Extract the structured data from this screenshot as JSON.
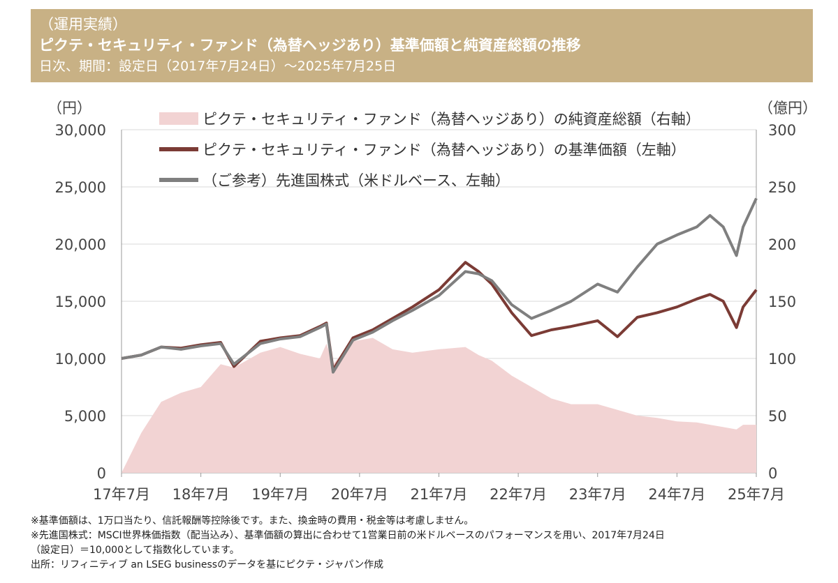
{
  "header": {
    "label": "（運用実績）",
    "title": "ピクテ・セキュリティ・ファンド（為替ヘッジあり）基準価額と純資産総額の推移",
    "subtitle": "日次、期間：設定日（2017年7月24日）～2025年7月25日"
  },
  "chart_data": {
    "type": "line",
    "left_unit": "（円）",
    "right_unit": "（億円）",
    "ylim_left": [
      0,
      30000
    ],
    "ylim_right": [
      0,
      300
    ],
    "yticks_left": [
      "0",
      "5,000",
      "10,000",
      "15,000",
      "20,000",
      "25,000",
      "30,000"
    ],
    "yticks_right": [
      "0",
      "50",
      "100",
      "150",
      "200",
      "250",
      "300"
    ],
    "xticks": [
      "17年7月",
      "18年7月",
      "19年7月",
      "20年7月",
      "21年7月",
      "22年7月",
      "23年7月",
      "24年7月",
      "25年7月"
    ],
    "grid": true,
    "legend_placement": "top-left",
    "x": [
      "2017-07",
      "2017-10",
      "2018-01",
      "2018-04",
      "2018-07",
      "2018-10",
      "2018-12",
      "2019-04",
      "2019-07",
      "2019-10",
      "2020-01",
      "2020-02",
      "2020-03",
      "2020-06",
      "2020-09",
      "2020-12",
      "2021-03",
      "2021-07",
      "2021-11",
      "2022-01",
      "2022-03",
      "2022-06",
      "2022-09",
      "2022-12",
      "2023-03",
      "2023-07",
      "2023-10",
      "2024-01",
      "2024-04",
      "2024-07",
      "2024-10",
      "2024-12",
      "2025-02",
      "2025-04",
      "2025-05",
      "2025-07"
    ],
    "series": [
      {
        "name": "ピクテ・セキュリティ・ファンド（為替ヘッジあり）の純資産総額（右軸）",
        "axis": "right",
        "kind": "area",
        "color": "#f2d3d3",
        "values": [
          0,
          35,
          62,
          70,
          75,
          95,
          92,
          105,
          110,
          104,
          100,
          113,
          95,
          115,
          118,
          108,
          105,
          108,
          110,
          103,
          98,
          85,
          75,
          65,
          60,
          60,
          55,
          50,
          48,
          45,
          44,
          42,
          40,
          38,
          42,
          42
        ]
      },
      {
        "name": "ピクテ・セキュリティ・ファンド（為替ヘッジあり）の基準価額（左軸）",
        "axis": "left",
        "kind": "line",
        "color": "#7b3b35",
        "values": [
          10000,
          10300,
          11000,
          10900,
          11200,
          11400,
          9300,
          11500,
          11800,
          12000,
          12800,
          13100,
          9000,
          11800,
          12500,
          13500,
          14500,
          16000,
          18400,
          17600,
          16500,
          14000,
          12000,
          12500,
          12800,
          13300,
          11900,
          13600,
          14000,
          14500,
          15200,
          15600,
          15000,
          12700,
          14500,
          16000
        ]
      },
      {
        "name": "（ご参考）先進国株式（米ドルベース、左軸）",
        "axis": "left",
        "kind": "line",
        "color": "#7f7f7f",
        "values": [
          10000,
          10300,
          11000,
          10800,
          11100,
          11300,
          9500,
          11300,
          11700,
          11900,
          12700,
          13000,
          8800,
          11600,
          12300,
          13300,
          14200,
          15500,
          17600,
          17400,
          16800,
          14700,
          13500,
          14200,
          15000,
          16500,
          15800,
          18000,
          20000,
          20800,
          21500,
          22500,
          21500,
          19000,
          21500,
          24000
        ]
      }
    ]
  },
  "notes": [
    "※基準価額は、1万口当たり、信託報酬等控除後です。また、換金時の費用・税金等は考慮しません。",
    "※先進国株式：MSCI世界株価指数（配当込み）、基準価額の算出に合わせて1営業日前の米ドルベースのパフォーマンスを用い、2017年7月24日",
    "（設定日）＝10,000として指数化しています。",
    "出所：リフィニティブ an LSEG businessのデータを基にピクテ・ジャパン作成"
  ]
}
